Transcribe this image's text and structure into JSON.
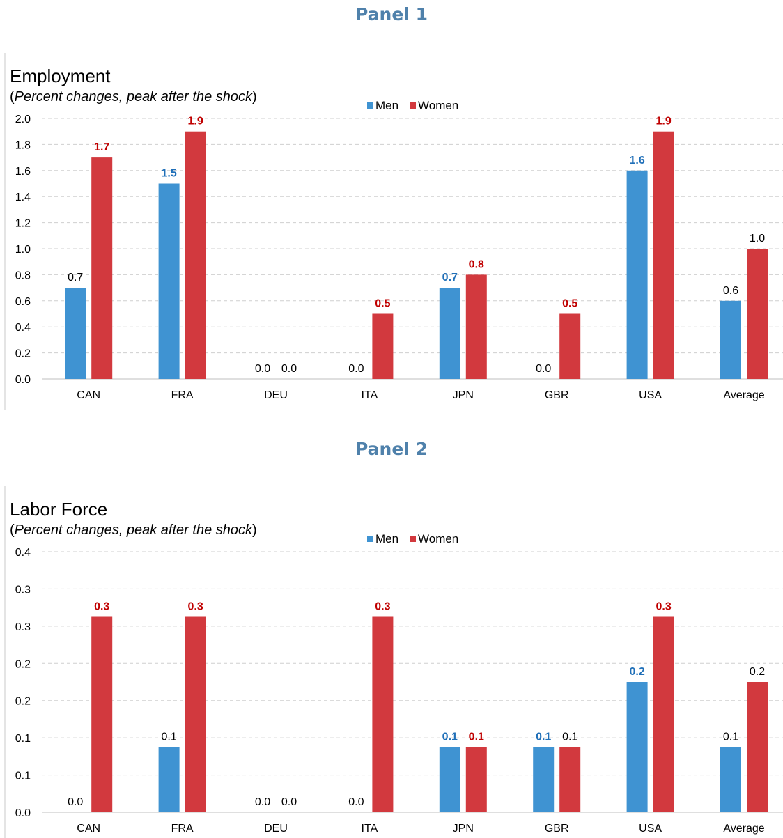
{
  "panels": [
    {
      "heading": "Panel 1"
    },
    {
      "heading": "Panel 2"
    }
  ],
  "colors": {
    "men": "#3f93d2",
    "women": "#d2393e",
    "men_label_bold": "#1f6fb8",
    "women_label_bold": "#c00000",
    "label_plain": "#000000",
    "grid": "#cfcfcf",
    "panel_heading": "#4f81ab"
  },
  "chart_data": [
    {
      "type": "bar",
      "title": "Employment",
      "subtitle_open": "(",
      "subtitle_italic": "Percent changes, peak after the shock",
      "subtitle_close": ")",
      "legend_placement": "top-center",
      "grid": true,
      "categories": [
        "CAN",
        "FRA",
        "DEU",
        "ITA",
        "JPN",
        "GBR",
        "USA",
        "Average"
      ],
      "ylim": [
        0,
        2.0
      ],
      "yticks": [
        "0.0",
        "0.2",
        "0.4",
        "0.6",
        "0.8",
        "1.0",
        "1.2",
        "1.4",
        "1.6",
        "1.8",
        "2.0"
      ],
      "series": [
        {
          "name": "Men",
          "values": [
            0.7,
            1.5,
            0.0,
            0.0,
            0.7,
            0.0,
            1.6,
            0.6
          ],
          "labels": [
            "0.7",
            "1.5",
            "0.0",
            "0.0",
            "0.7",
            "0.0",
            "1.6",
            "0.6"
          ],
          "bold": [
            false,
            true,
            false,
            false,
            true,
            false,
            true,
            false
          ]
        },
        {
          "name": "Women",
          "values": [
            1.7,
            1.9,
            0.0,
            0.5,
            0.8,
            0.5,
            1.9,
            1.0
          ],
          "labels": [
            "1.7",
            "1.9",
            "0.0",
            "0.5",
            "0.8",
            "0.5",
            "1.9",
            "1.0"
          ],
          "bold": [
            true,
            true,
            false,
            true,
            true,
            true,
            true,
            false
          ]
        }
      ]
    },
    {
      "type": "bar",
      "title": "Labor Force",
      "subtitle_open": "(",
      "subtitle_italic": "Percent changes, peak after the shock",
      "subtitle_close": ")",
      "legend_placement": "top-center",
      "grid": true,
      "categories": [
        "CAN",
        "FRA",
        "DEU",
        "ITA",
        "JPN",
        "GBR",
        "USA",
        "Average"
      ],
      "ylim": [
        0,
        0.4
      ],
      "yticks": [
        "0.0",
        "0.1",
        "0.1",
        "0.2",
        "0.2",
        "0.3",
        "0.3",
        "0.4"
      ],
      "series": [
        {
          "name": "Men",
          "values": [
            0.0,
            0.1,
            0.0,
            0.0,
            0.1,
            0.1,
            0.2,
            0.1
          ],
          "labels": [
            "0.0",
            "0.1",
            "0.0",
            "0.0",
            "0.1",
            "0.1",
            "0.2",
            "0.1"
          ],
          "bold": [
            false,
            false,
            false,
            false,
            true,
            true,
            true,
            false
          ]
        },
        {
          "name": "Women",
          "values": [
            0.3,
            0.3,
            0.0,
            0.3,
            0.1,
            0.1,
            0.3,
            0.2
          ],
          "labels": [
            "0.3",
            "0.3",
            "0.0",
            "0.3",
            "0.1",
            "0.1",
            "0.3",
            "0.2"
          ],
          "bold": [
            true,
            true,
            false,
            true,
            true,
            false,
            true,
            false
          ]
        }
      ]
    }
  ]
}
